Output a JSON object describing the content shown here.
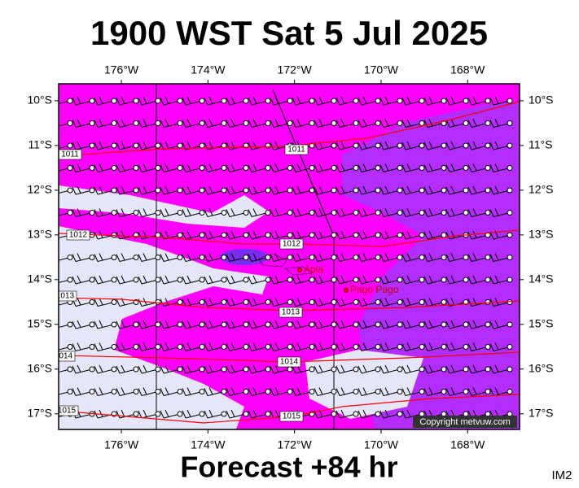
{
  "title": "1900 WST Sat 5 Jul 2025",
  "footer": "Forecast +84 hr",
  "corner": "IM2",
  "copyright": "Copyright metvuw.com",
  "lon_ticks": [
    {
      "value": -176,
      "label": "176°W"
    },
    {
      "value": -174,
      "label": "174°W"
    },
    {
      "value": -172,
      "label": "172°W"
    },
    {
      "value": -170,
      "label": "170°W"
    },
    {
      "value": -168,
      "label": "168°W"
    }
  ],
  "lat_ticks": [
    {
      "value": -10,
      "label": "10°S"
    },
    {
      "value": -11,
      "label": "11°S"
    },
    {
      "value": -12,
      "label": "12°S"
    },
    {
      "value": -13,
      "label": "13°S"
    },
    {
      "value": -14,
      "label": "14°S"
    },
    {
      "value": -15,
      "label": "15°S"
    },
    {
      "value": -16,
      "label": "16°S"
    },
    {
      "value": -17,
      "label": "17°S"
    }
  ],
  "isobars": [
    "1011",
    "1012",
    "1013",
    "1014",
    "1015"
  ],
  "places": [
    "Apia",
    "Pago Pago"
  ]
}
